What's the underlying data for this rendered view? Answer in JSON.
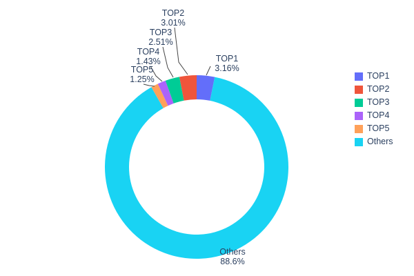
{
  "chart_data": {
    "type": "pie",
    "title": "",
    "labels": [
      "TOP1",
      "TOP2",
      "TOP3",
      "TOP4",
      "TOP5",
      "Others"
    ],
    "values": [
      3.16,
      3.01,
      2.51,
      1.43,
      1.25,
      88.6
    ],
    "display_percents": [
      "3.16%",
      "3.01%",
      "2.51%",
      "1.43%",
      "1.25%",
      "88.6%"
    ],
    "colors": [
      "#636efa",
      "#ef553b",
      "#00cc96",
      "#ab63fa",
      "#ffa15a",
      "#19d3f3"
    ],
    "hole_ratio": 0.74,
    "legend_position": "right",
    "background_color": "#ffffff",
    "text_color": "#2a3f5f"
  }
}
